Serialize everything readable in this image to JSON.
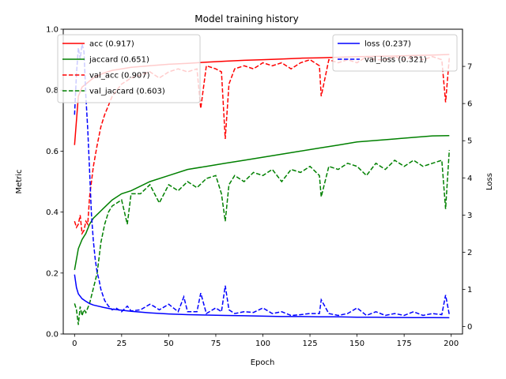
{
  "chart_data": {
    "type": "line",
    "title": "Model training history",
    "xlabel": "Epoch",
    "ylabel": "Metric",
    "y2label": "Loss",
    "xlim": [
      -6,
      206
    ],
    "ylim": [
      0,
      1.0
    ],
    "y2lim": [
      -0.2,
      8.0
    ],
    "xticks": [
      0,
      25,
      50,
      75,
      100,
      125,
      150,
      175,
      200
    ],
    "yticks": [
      0.0,
      0.2,
      0.4,
      0.6,
      0.8,
      1.0
    ],
    "y2ticks": [
      0,
      1,
      2,
      3,
      4,
      5,
      6,
      7
    ],
    "grid": false,
    "legend_left_placement": "upper-left",
    "legend_right_placement": "upper-right",
    "series": [
      {
        "name": "acc (0.917)",
        "axis": "left",
        "color": "#ff0000",
        "dash": "solid",
        "x": [
          0,
          2,
          4,
          6,
          8,
          10,
          15,
          20,
          25,
          30,
          40,
          50,
          60,
          70,
          80,
          90,
          100,
          110,
          120,
          130,
          140,
          150,
          160,
          170,
          180,
          190,
          199
        ],
        "values": [
          0.62,
          0.78,
          0.81,
          0.82,
          0.83,
          0.84,
          0.855,
          0.865,
          0.87,
          0.875,
          0.88,
          0.885,
          0.888,
          0.892,
          0.895,
          0.898,
          0.9,
          0.902,
          0.905,
          0.906,
          0.908,
          0.91,
          0.911,
          0.912,
          0.914,
          0.915,
          0.917
        ]
      },
      {
        "name": "jaccard (0.651)",
        "axis": "left",
        "color": "#008000",
        "dash": "solid",
        "x": [
          0,
          2,
          4,
          6,
          8,
          10,
          15,
          20,
          25,
          30,
          40,
          50,
          60,
          70,
          80,
          90,
          100,
          110,
          120,
          130,
          140,
          150,
          160,
          170,
          180,
          190,
          199
        ],
        "values": [
          0.21,
          0.28,
          0.31,
          0.33,
          0.36,
          0.38,
          0.41,
          0.44,
          0.46,
          0.47,
          0.5,
          0.52,
          0.54,
          0.55,
          0.56,
          0.57,
          0.58,
          0.59,
          0.6,
          0.61,
          0.62,
          0.63,
          0.635,
          0.64,
          0.645,
          0.65,
          0.651
        ]
      },
      {
        "name": "val_acc (0.907)",
        "axis": "left",
        "color": "#ff0000",
        "dash": "dashed",
        "x": [
          0,
          1,
          2,
          3,
          4,
          5,
          6,
          7,
          8,
          10,
          12,
          14,
          16,
          18,
          20,
          25,
          30,
          35,
          40,
          45,
          50,
          55,
          60,
          65,
          67,
          70,
          75,
          78,
          80,
          82,
          85,
          90,
          95,
          100,
          105,
          110,
          115,
          120,
          125,
          130,
          131,
          135,
          140,
          145,
          150,
          155,
          160,
          165,
          170,
          175,
          180,
          185,
          190,
          195,
          197,
          199
        ],
        "values": [
          0.37,
          0.35,
          0.36,
          0.39,
          0.33,
          0.34,
          0.37,
          0.36,
          0.45,
          0.55,
          0.62,
          0.68,
          0.72,
          0.75,
          0.78,
          0.82,
          0.84,
          0.85,
          0.86,
          0.84,
          0.86,
          0.87,
          0.86,
          0.87,
          0.74,
          0.88,
          0.87,
          0.86,
          0.64,
          0.82,
          0.87,
          0.88,
          0.87,
          0.89,
          0.88,
          0.89,
          0.87,
          0.89,
          0.9,
          0.88,
          0.78,
          0.9,
          0.89,
          0.9,
          0.89,
          0.91,
          0.9,
          0.9,
          0.91,
          0.9,
          0.91,
          0.9,
          0.91,
          0.9,
          0.76,
          0.907
        ]
      },
      {
        "name": "val_jaccard (0.603)",
        "axis": "left",
        "color": "#008000",
        "dash": "dashed",
        "x": [
          0,
          1,
          2,
          3,
          4,
          5,
          6,
          8,
          10,
          12,
          14,
          16,
          18,
          20,
          25,
          28,
          30,
          35,
          40,
          45,
          50,
          55,
          60,
          65,
          70,
          75,
          78,
          80,
          82,
          85,
          90,
          95,
          100,
          105,
          110,
          115,
          120,
          125,
          130,
          131,
          135,
          140,
          145,
          150,
          155,
          160,
          165,
          170,
          175,
          180,
          185,
          190,
          195,
          197,
          199
        ],
        "values": [
          0.1,
          0.08,
          0.03,
          0.09,
          0.06,
          0.08,
          0.07,
          0.1,
          0.15,
          0.2,
          0.3,
          0.36,
          0.4,
          0.42,
          0.44,
          0.36,
          0.46,
          0.46,
          0.49,
          0.43,
          0.49,
          0.47,
          0.5,
          0.48,
          0.51,
          0.52,
          0.46,
          0.37,
          0.49,
          0.52,
          0.5,
          0.53,
          0.52,
          0.54,
          0.5,
          0.54,
          0.53,
          0.55,
          0.52,
          0.45,
          0.55,
          0.54,
          0.56,
          0.55,
          0.52,
          0.56,
          0.54,
          0.57,
          0.55,
          0.57,
          0.55,
          0.56,
          0.57,
          0.41,
          0.603
        ]
      },
      {
        "name": "loss (0.237)",
        "axis": "right",
        "color": "#0000ff",
        "dash": "solid",
        "x": [
          0,
          1,
          2,
          4,
          6,
          8,
          10,
          15,
          20,
          25,
          30,
          40,
          50,
          60,
          70,
          80,
          90,
          100,
          110,
          120,
          130,
          140,
          150,
          160,
          170,
          180,
          190,
          199
        ],
        "values": [
          1.4,
          1.05,
          0.88,
          0.75,
          0.68,
          0.62,
          0.58,
          0.52,
          0.47,
          0.44,
          0.41,
          0.37,
          0.34,
          0.32,
          0.31,
          0.3,
          0.29,
          0.28,
          0.27,
          0.27,
          0.26,
          0.26,
          0.25,
          0.25,
          0.245,
          0.24,
          0.24,
          0.237
        ]
      },
      {
        "name": "val_loss (0.321)",
        "axis": "right",
        "color": "#0000ff",
        "dash": "dashed",
        "x": [
          0,
          1,
          2,
          3,
          4,
          5,
          6,
          7,
          8,
          9,
          10,
          11,
          12,
          13,
          14,
          15,
          16,
          18,
          20,
          22,
          25,
          28,
          30,
          35,
          40,
          42,
          45,
          50,
          55,
          58,
          60,
          65,
          67,
          70,
          75,
          78,
          80,
          82,
          85,
          90,
          95,
          100,
          105,
          110,
          115,
          120,
          125,
          130,
          131,
          135,
          140,
          145,
          150,
          155,
          160,
          165,
          170,
          175,
          180,
          185,
          190,
          195,
          197,
          199
        ],
        "values": [
          5.7,
          6.8,
          7.5,
          7.2,
          7.6,
          7.4,
          6.2,
          5.3,
          4.2,
          3.0,
          2.3,
          1.8,
          1.45,
          1.25,
          1.0,
          0.85,
          0.7,
          0.55,
          0.45,
          0.5,
          0.4,
          0.55,
          0.42,
          0.45,
          0.6,
          0.55,
          0.45,
          0.6,
          0.4,
          0.8,
          0.4,
          0.4,
          0.9,
          0.35,
          0.5,
          0.4,
          1.1,
          0.45,
          0.35,
          0.4,
          0.38,
          0.5,
          0.35,
          0.4,
          0.3,
          0.32,
          0.35,
          0.35,
          0.72,
          0.35,
          0.3,
          0.35,
          0.5,
          0.3,
          0.4,
          0.3,
          0.35,
          0.3,
          0.4,
          0.3,
          0.35,
          0.32,
          0.85,
          0.321
        ]
      }
    ]
  }
}
